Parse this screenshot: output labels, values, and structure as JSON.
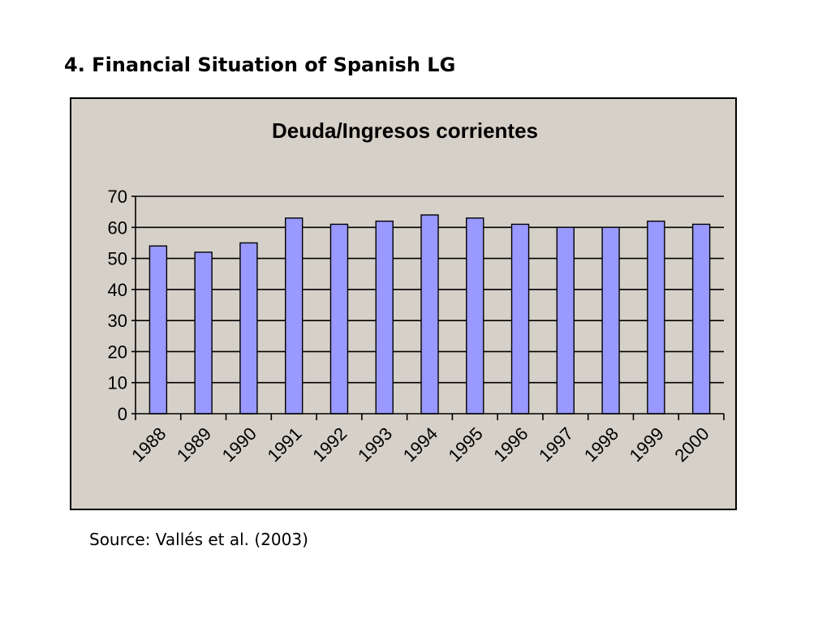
{
  "slide": {
    "title": "4. Financial Situation of Spanish LG",
    "source": "Source: Vallés et al. (2003)"
  },
  "colors": {
    "plot_background": "#d6d1c8",
    "bar_fill": "#9999ff",
    "bar_stroke": "#000000",
    "gridline": "#000000"
  },
  "chart_data": {
    "type": "bar",
    "title": "Deuda/Ingresos corrientes",
    "xlabel": "",
    "ylabel": "",
    "categories": [
      "1988",
      "1989",
      "1990",
      "1991",
      "1992",
      "1993",
      "1994",
      "1995",
      "1996",
      "1997",
      "1998",
      "1999",
      "2000"
    ],
    "values": [
      54,
      52,
      55,
      63,
      61,
      62,
      64,
      63,
      61,
      60,
      60,
      62,
      61
    ],
    "ylim": [
      0,
      70
    ],
    "yticks": [
      "0",
      "10",
      "20",
      "30",
      "40",
      "50",
      "60",
      "70"
    ],
    "grid": true,
    "legend": "none"
  }
}
